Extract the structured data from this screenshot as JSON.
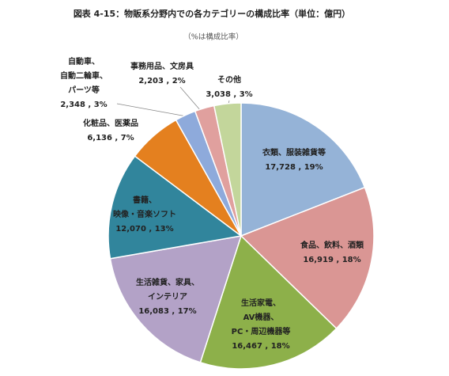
{
  "chart_data": {
    "type": "pie",
    "title": "図表 4-15：物販系分野内での各カテゴリーの構成比率（単位：億円）",
    "subtitle": "（%は構成比率）",
    "categories": [
      [
        "衣類、服装雑貨等"
      ],
      [
        "食品、飲料、酒類"
      ],
      [
        "生活家電、",
        "AV機器、",
        "PC・周辺機器等"
      ],
      [
        "生活雑貨、家具、",
        "インテリア"
      ],
      [
        "書籍、",
        "映像・音楽ソフト"
      ],
      [
        "化粧品、医薬品"
      ],
      [
        "自動車、",
        "自動二輪車、",
        "パーツ等"
      ],
      [
        "事務用品、文房具"
      ],
      [
        "その他"
      ]
    ],
    "values": [
      17728,
      16919,
      16467,
      16083,
      12070,
      6136,
      2348,
      2203,
      3038
    ],
    "value_labels": [
      "17,728 , 19%",
      "16,919 , 18%",
      "16,467 , 18%",
      "16,083 , 17%",
      "12,070 , 13%",
      "6,136 , 7%",
      "2,348 , 3%",
      "2,203 , 2%",
      "3,038 , 3%"
    ],
    "colors": [
      "#95b3d7",
      "#da9694",
      "#8db04a",
      "#b3a2c7",
      "#31859c",
      "#e4801f",
      "#8eaadb",
      "#e0a09e",
      "#c3d69b"
    ]
  }
}
